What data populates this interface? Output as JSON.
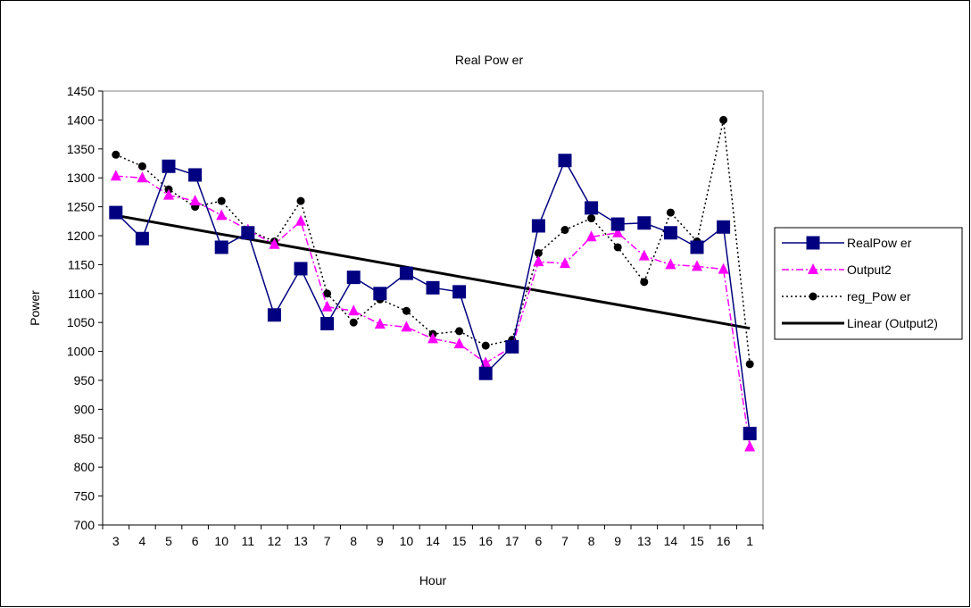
{
  "chart_data": {
    "type": "line",
    "title": "Real Pow er",
    "xlabel": "Hour",
    "ylabel": "Power",
    "ylim": [
      700,
      1450
    ],
    "ytick_step": 50,
    "grid": false,
    "legend_position": "right",
    "categories": [
      "3",
      "4",
      "5",
      "6",
      "10",
      "11",
      "12",
      "13",
      "7",
      "8",
      "9",
      "10",
      "14",
      "15",
      "16",
      "17",
      "6",
      "7",
      "8",
      "9",
      "13",
      "14",
      "15",
      "16",
      "1"
    ],
    "series": [
      {
        "name": "RealPow er",
        "color": "#000080",
        "marker": "square",
        "dash": "solid",
        "values": [
          1240,
          1195,
          1320,
          1305,
          1180,
          1205,
          1063,
          1143,
          1048,
          1128,
          1100,
          1135,
          1110,
          1103,
          962,
          1008,
          1217,
          1330,
          1248,
          1220,
          1222,
          1205,
          1180,
          1215,
          858
        ]
      },
      {
        "name": "Output2",
        "color": "#ff00ff",
        "marker": "triangle",
        "dash": "dashdot",
        "values": [
          1303,
          1300,
          1270,
          1260,
          1235,
          1210,
          1185,
          1225,
          1077,
          1070,
          1047,
          1042,
          1022,
          1013,
          980,
          1008,
          1155,
          1152,
          1198,
          1205,
          1165,
          1150,
          1147,
          1142,
          835
        ]
      },
      {
        "name": "reg_Pow er",
        "color": "#000000",
        "marker": "circle",
        "dash": "dotted",
        "values": [
          1340,
          1320,
          1280,
          1250,
          1260,
          1210,
          1190,
          1260,
          1100,
          1050,
          1090,
          1070,
          1030,
          1035,
          1010,
          1020,
          1170,
          1210,
          1230,
          1180,
          1120,
          1240,
          1190,
          1400,
          978
        ]
      }
    ],
    "trendline": {
      "name": "Linear (Output2)",
      "color": "#000000",
      "start_value": 1235,
      "end_value": 1040
    },
    "legend_entries": [
      "RealPow er",
      "Output2",
      "reg_Pow er",
      "Linear (Output2)"
    ]
  }
}
